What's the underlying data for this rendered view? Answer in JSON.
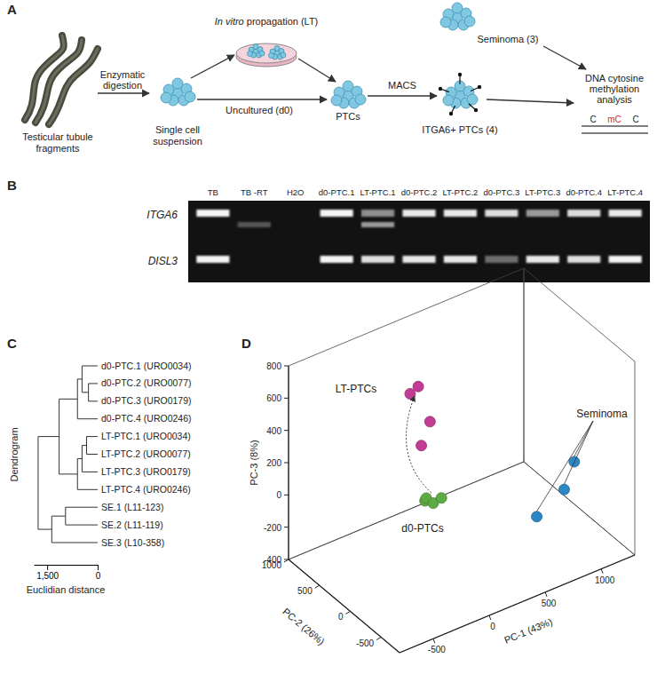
{
  "panel_a": {
    "letter": "A",
    "tubules": [
      "Testicular tubule",
      "fragments"
    ],
    "digestion": [
      "Enzymatic",
      "digestion"
    ],
    "suspension": [
      "Single cell",
      "suspension"
    ],
    "propagation": {
      "italic": "In vitro",
      "text": " propagation (LT)"
    },
    "uncultured": "Uncultured (d0)",
    "ptcs": "PTCs",
    "macs": "MACS",
    "itga6": "ITGA6+ PTCs (4)",
    "seminoma": "Seminoma (3)",
    "analysis": [
      "DNA cytosine",
      "methylation",
      "analysis"
    ],
    "dna": [
      "C",
      "mC",
      "C"
    ]
  },
  "panel_b": {
    "letter": "B",
    "lanes": [
      "TB",
      "TB -RT",
      "H2O",
      "d0-PTC.1",
      "LT-PTC.1",
      "d0-PTC.2",
      "LT-PTC.2",
      "d0-PTC.3",
      "LT-PTC.3",
      "d0-PTC.4",
      "LT-PTC.4"
    ],
    "genes": [
      {
        "name": "ITGA6",
        "intensity": [
          1,
          0,
          0,
          1,
          0.55,
          0.95,
          0.95,
          0.9,
          0.6,
          0.9,
          0.95
        ],
        "lower_band": [
          0,
          0.3,
          0,
          0,
          0.6,
          0,
          0,
          0,
          0,
          0,
          0
        ]
      },
      {
        "name": "DISL3",
        "intensity": [
          1,
          0,
          0,
          1,
          0.9,
          0.95,
          0.95,
          0.4,
          0.95,
          0.9,
          1
        ],
        "lower_band": [
          0,
          0,
          0,
          0,
          0,
          0,
          0,
          0,
          0,
          0,
          0
        ]
      }
    ]
  },
  "chart_data": [
    {
      "type": "dendrogram",
      "letter": "C",
      "ylabel": "Dendrogram",
      "xlabel": "Euclidian distance",
      "xlim": [
        1900,
        0
      ],
      "xticks": [
        {
          "value": 1500,
          "label": "1,500"
        },
        0
      ],
      "tree": {
        "height": 1770,
        "children": [
          {
            "height": 1145,
            "children": [
              {
                "height": 600,
                "children": [
                  {
                    "height": 464,
                    "children": [
                      {
                        "label": "d0-PTC.1 (URO0034)"
                      },
                      {
                        "height": 273,
                        "children": [
                          {
                            "label": "d0-PTC.2 (URO0077)"
                          },
                          {
                            "label": "d0-PTC.3 (URO0179)"
                          }
                        ]
                      }
                    ]
                  },
                  {
                    "label": "d0-PTC.4 (URO0246)"
                  }
                ]
              },
              {
                "height": 600,
                "children": [
                  {
                    "height": 464,
                    "children": [
                      {
                        "height": 330,
                        "children": [
                          {
                            "label": "LT-PTC.1 (URO0034)"
                          },
                          {
                            "label": "LT-PTC.2 (URO0077)"
                          }
                        ]
                      },
                      {
                        "label": "LT-PTC.3 (URO0179)"
                      }
                    ]
                  },
                  {
                    "label": "LT-PTC.4 (URO0246)"
                  }
                ]
              }
            ]
          },
          {
            "height": 1364,
            "children": [
              {
                "height": 955,
                "children": [
                  {
                    "label": "SE.1 (L11-123)"
                  },
                  {
                    "label": "SE.2 (L11-119)"
                  }
                ]
              },
              {
                "label": "SE.3 (L10-358)"
              }
            ]
          }
        ]
      }
    },
    {
      "type": "scatter3d",
      "letter": "D",
      "xlabel": "PC-1 (43%)",
      "ylabel": "PC-2 (26%)",
      "zlabel": "PC-3 (8%)",
      "xlim": [
        -800,
        1300
      ],
      "ylim": [
        -800,
        1000
      ],
      "zlim": [
        -400,
        800
      ],
      "xticks": [
        -500,
        0,
        500,
        1000
      ],
      "yticks": [
        -500,
        0,
        500,
        1000
      ],
      "zticks": [
        -400,
        -200,
        0,
        200,
        400,
        600,
        800
      ],
      "series": [
        {
          "name": "d0-PTCs",
          "color": "#5dab43",
          "x": [
            -50,
            0,
            40,
            80
          ],
          "y": [
            150,
            220,
            180,
            120
          ],
          "z": [
            20,
            0,
            -30,
            10
          ]
        },
        {
          "name": "LT-PTCs",
          "color": "#c23b94",
          "x": [
            -100,
            0,
            50,
            0
          ],
          "y": [
            300,
            350,
            250,
            300
          ],
          "z": [
            650,
            650,
            450,
            300
          ]
        },
        {
          "name": "Seminoma",
          "color": "#2b87c4",
          "x": [
            700,
            1000,
            1200
          ],
          "y": [
            -300,
            -200,
            0
          ],
          "z": [
            -150,
            -100,
            -50
          ]
        }
      ]
    }
  ]
}
